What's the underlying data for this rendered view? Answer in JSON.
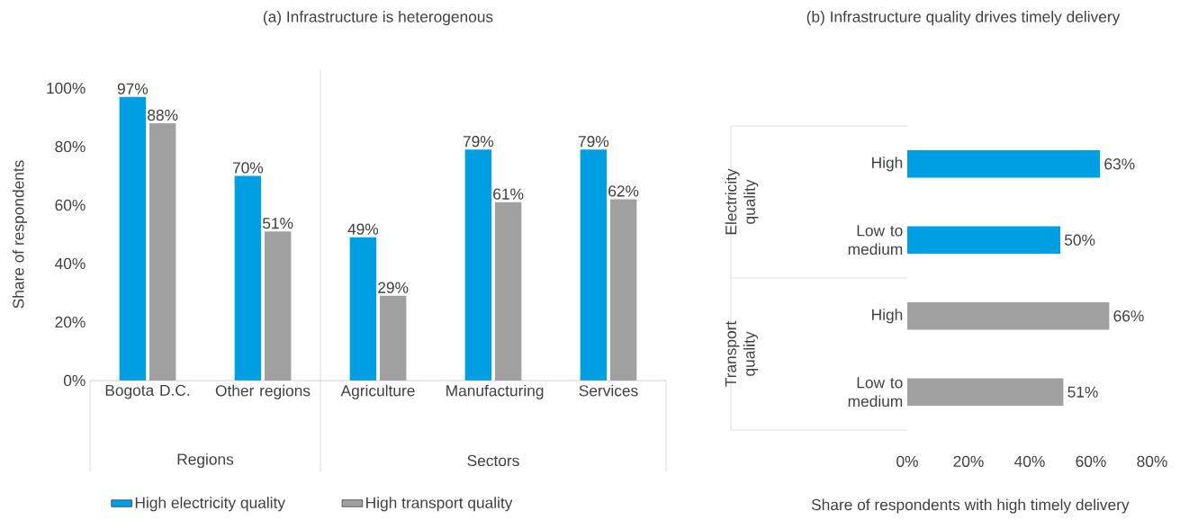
{
  "chart_data": [
    {
      "type": "bar",
      "title": "(a) Infrastructure is heterogenous",
      "ylabel": "Share of respondents",
      "categories": [
        "Bogota D.C.",
        "Other regions",
        "Agriculture",
        "Manufacturing",
        "Services"
      ],
      "series": [
        {
          "name": "High electricity quality",
          "color": "#009fe3",
          "values": [
            97,
            70,
            49,
            79,
            79
          ],
          "value_labels": [
            "97%",
            "70%",
            "49%",
            "79%",
            "79%"
          ]
        },
        {
          "name": "High transport quality",
          "color": "#a0a0a0",
          "values": [
            88,
            51,
            29,
            61,
            62
          ],
          "value_labels": [
            "88%",
            "51%",
            "29%",
            "61%",
            "62%"
          ]
        }
      ],
      "ylim": [
        0,
        100
      ],
      "yticks": [
        {
          "value": 0,
          "label": "0%"
        },
        {
          "value": 20,
          "label": "20%"
        },
        {
          "value": 40,
          "label": "40%"
        },
        {
          "value": 60,
          "label": "60%"
        },
        {
          "value": 80,
          "label": "80%"
        },
        {
          "value": 100,
          "label": "100%"
        }
      ],
      "legend": "bottom",
      "annotations": [
        "Regions",
        "Sectors"
      ]
    },
    {
      "type": "bar",
      "orientation": "horizontal",
      "title": "(b) Infrastructure quality drives timely delivery",
      "xlabel": "Share of respondents with high timely delivery",
      "categories": [
        "High",
        "Low to medium",
        "High",
        "Low to medium"
      ],
      "values": [
        63,
        50,
        66,
        51
      ],
      "colors": [
        "#009fe3",
        "#009fe3",
        "#a0a0a0",
        "#a0a0a0"
      ],
      "value_labels": [
        "63%",
        "50%",
        "66%",
        "51%"
      ],
      "xlim": [
        0,
        80
      ],
      "xticks": [
        {
          "value": 0,
          "label": "0%"
        },
        {
          "value": 20,
          "label": "20%"
        },
        {
          "value": 40,
          "label": "40%"
        },
        {
          "value": 60,
          "label": "60%"
        },
        {
          "value": 80,
          "label": "80%"
        }
      ],
      "annotations": [
        "Electricity quality",
        "Transport quality"
      ]
    }
  ]
}
